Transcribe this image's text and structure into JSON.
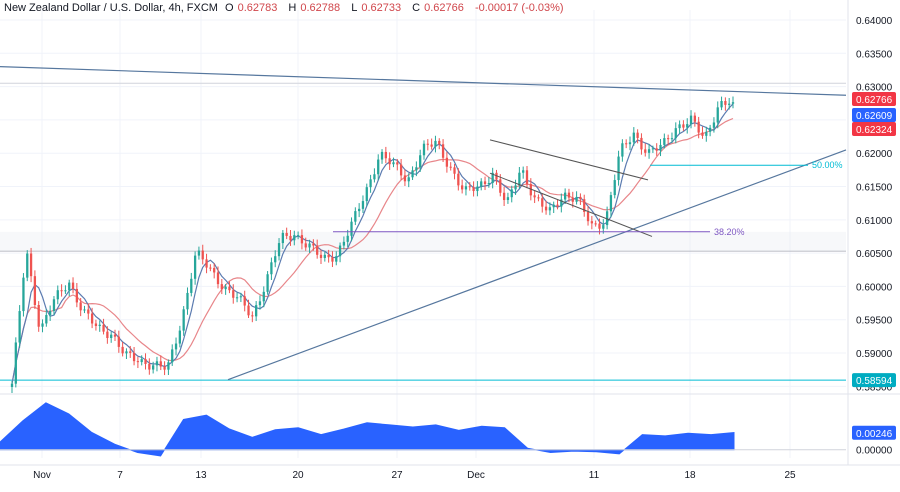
{
  "header": {
    "title": "New Zealand Dollar / U.S. Dollar, 4h, FXCM",
    "open_label": "O",
    "open": "0.62783",
    "high_label": "H",
    "high": "0.62788",
    "low_label": "L",
    "low": "0.62733",
    "close_label": "C",
    "close": "0.62766",
    "change": "-0.00017 (-0.03%)"
  },
  "colors": {
    "bull": "#26a69a",
    "bear": "#ef5350",
    "ma_fast": "#5b7bb0",
    "ma_slow": "#e8868a",
    "trendline": "#56779e",
    "fib": "#7e57c2",
    "oscillator": "#2962ff",
    "support": "#00bcd4",
    "close_badge": "#f23645",
    "fast_badge": "#2962ff",
    "slow_badge": "#f23645",
    "support_badge": "#00acc1"
  },
  "chart_data": [
    {
      "type": "candlestick",
      "symbol": "NZDUSD",
      "timeframe": "4h",
      "ylim": [
        0.584,
        0.6415
      ],
      "y_ticks": [
        "0.64000",
        "0.63500",
        "0.63000",
        "0.62500",
        "0.62000",
        "0.61500",
        "0.61000",
        "0.60500",
        "0.60000",
        "0.59500",
        "0.59000",
        "0.58500"
      ],
      "x_ticks": [
        "Nov",
        "7",
        "13",
        "20",
        "27",
        "Dec",
        "11",
        "18",
        "25"
      ],
      "price_badges": [
        {
          "label": "0.62766",
          "value": 0.62766,
          "color": "#f23645"
        },
        {
          "label": "0.62609",
          "value": 0.62609,
          "color": "#2962ff"
        },
        {
          "label": "0.62324",
          "value": 0.62324,
          "color": "#f23645"
        },
        {
          "label": "0.58594",
          "value": 0.58594,
          "color": "#00acc1"
        }
      ],
      "fib_levels": [
        {
          "label": "50.00%",
          "value": 0.6182
        },
        {
          "label": "38.20%",
          "value": 0.6082
        }
      ],
      "horizontal_levels": [
        0.6082,
        0.6053,
        0.6305,
        0.58594
      ],
      "anchor_points": [
        [
          0.585,
          0.606,
          0.593,
          0.598,
          0.601,
          0.596,
          0.594,
          0.593,
          0.5895,
          0.589,
          0.5882,
          0.5875,
          0.595,
          0.605,
          0.6025,
          0.6,
          0.598,
          0.5955,
          0.601,
          0.607,
          0.608,
          0.606,
          0.604,
          0.605,
          0.609,
          0.614,
          0.62,
          0.618,
          0.616,
          0.6205,
          0.6215,
          0.618,
          0.614,
          0.615,
          0.617,
          0.612,
          0.618,
          0.613,
          0.611,
          0.614,
          0.613,
          0.609,
          0.61,
          0.62,
          0.623,
          0.62,
          0.621,
          0.624,
          0.625,
          0.622,
          0.6275,
          0.6277
        ]
      ],
      "last_close": 0.62766
    },
    {
      "type": "area",
      "series": [
        {
          "values": [
            0.0011,
            0.0042,
            0.0068,
            0.0052,
            0.0025,
            0.0008,
            -0.0004,
            -0.0009,
            0.0044,
            0.005,
            0.003,
            0.0018,
            0.0029,
            0.0032,
            0.0022,
            0.003,
            0.0039,
            0.0036,
            0.0033,
            0.0036,
            0.0028,
            0.0034,
            0.0032,
            0.0002,
            -0.0004,
            -0.0002,
            -0.0003,
            -0.0006,
            0.0022,
            0.002,
            0.0024,
            0.0022,
            0.0025
          ]
        }
      ],
      "ylim": [
        -0.0012,
        0.0075
      ],
      "y_ticks": [
        "0.00246",
        "0.00000"
      ],
      "last_value": "0.00246"
    }
  ]
}
